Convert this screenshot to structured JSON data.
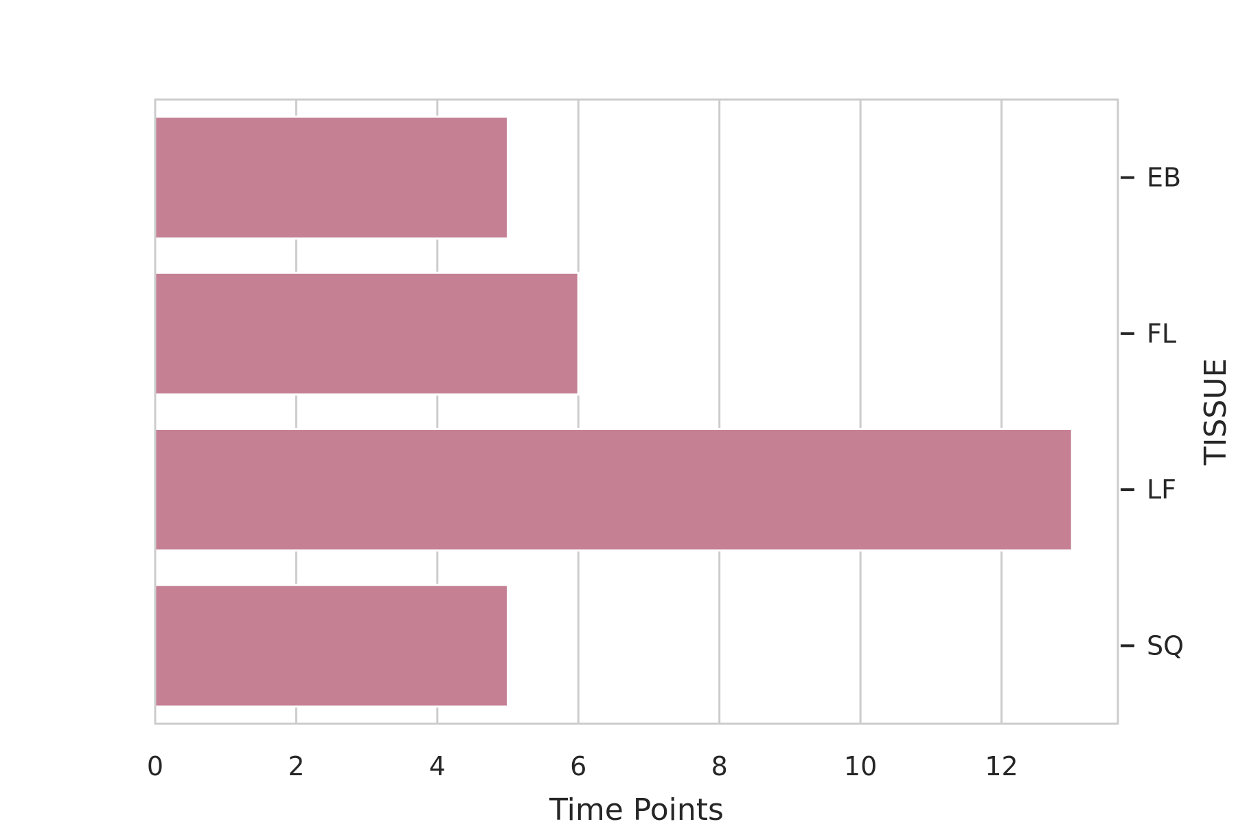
{
  "chart_data": {
    "type": "bar",
    "orientation": "horizontal",
    "categories": [
      "EB",
      "FL",
      "LF",
      "SQ"
    ],
    "values": [
      5,
      6,
      13,
      5
    ],
    "title": "",
    "xlabel": "Time Points",
    "ylabel": "TISSUE",
    "xlim": [
      0,
      13.65
    ],
    "xticks": [
      0,
      2,
      4,
      6,
      8,
      10,
      12
    ],
    "y_axis_side": "right",
    "grid": "vertical",
    "bar_color": "#c58093",
    "grid_color": "#cccccc",
    "text_color": "#262626"
  }
}
